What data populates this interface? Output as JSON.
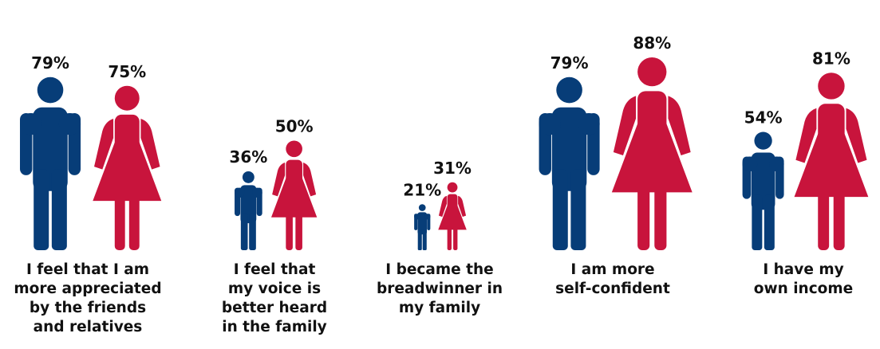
{
  "chart_data": {
    "type": "pictograph",
    "categories": [
      [
        "I feel that I am",
        "more appreciated",
        "by the friends",
        "and relatives"
      ],
      [
        "I feel that",
        "my voice is",
        "better heard",
        "in the family"
      ],
      [
        "I became the",
        "breadwinner in",
        "my family"
      ],
      [
        "I am more",
        "self-confident"
      ],
      [
        "I have my",
        "own income"
      ]
    ],
    "series": [
      {
        "values": [
          79,
          36,
          21,
          79,
          54
        ],
        "labels": [
          "79%",
          "36%",
          "21%",
          "79%",
          "54%"
        ]
      },
      {
        "values": [
          75,
          50,
          31,
          88,
          81
        ],
        "labels": [
          "75%",
          "50%",
          "31%",
          "88%",
          "81%"
        ]
      }
    ]
  },
  "colors": {
    "series_1": "#073d78",
    "series_2": "#c8143c"
  }
}
